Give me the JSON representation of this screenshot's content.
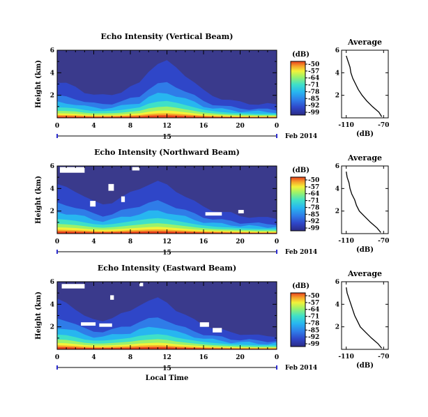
{
  "chart_data": [
    {
      "type": "heatmap",
      "title": "Echo Intensity (Vertical Beam)",
      "ylabel": "Height (km)",
      "xlabel": "",
      "y_ticks": [
        "6",
        "4",
        "2"
      ],
      "ylim": [
        0,
        6
      ],
      "x_ticks": [
        "0",
        "4",
        "8",
        "12",
        "16",
        "20",
        "0"
      ],
      "xlim": [
        0,
        24
      ],
      "date_day": "15",
      "date_label": "Feb 2014",
      "colorbar": {
        "label": "(dB)",
        "ticks": [
          "-50",
          "-57",
          "-64",
          "-71",
          "-78",
          "-85",
          "-92",
          "-99"
        ],
        "range": [
          -99,
          -50
        ]
      },
      "echo_top_km": {
        "time_h": [
          0,
          1,
          2,
          3,
          4,
          5,
          6,
          7,
          8,
          9,
          10,
          11,
          12,
          13,
          14,
          15,
          16,
          17,
          18,
          19,
          20,
          21,
          22,
          23,
          24
        ],
        "height": [
          3.1,
          3.0,
          2.8,
          2.3,
          2.0,
          2.0,
          2.1,
          2.3,
          2.7,
          3.1,
          4.2,
          4.8,
          5.0,
          4.5,
          3.8,
          3.1,
          2.4,
          2.0,
          1.7,
          1.5,
          1.4,
          1.3,
          1.2,
          1.2,
          1.2
        ]
      },
      "gaps": [],
      "average": {
        "title": "Average",
        "xlabel": "(dB)",
        "x_ticks": [
          "-110",
          "-70"
        ],
        "xlim": [
          -115,
          -65
        ],
        "y_ticks": [
          "6",
          "4",
          "2"
        ],
        "ylim": [
          0,
          6
        ],
        "height_km": [
          0.1,
          0.5,
          1.0,
          1.5,
          2.0,
          2.5,
          3.0,
          3.5,
          4.0,
          4.5,
          5.0,
          5.5
        ],
        "value_db": [
          -72,
          -75,
          -82,
          -88,
          -93,
          -97,
          -100,
          -103,
          -105,
          -106,
          -108,
          -110
        ]
      }
    },
    {
      "type": "heatmap",
      "title": "Echo Intensity (Northward Beam)",
      "ylabel": "Height (km)",
      "xlabel": "",
      "y_ticks": [
        "6",
        "4",
        "2"
      ],
      "ylim": [
        0,
        6
      ],
      "x_ticks": [
        "0",
        "4",
        "8",
        "12",
        "16",
        "20",
        "0"
      ],
      "xlim": [
        0,
        24
      ],
      "date_day": "15",
      "date_label": "Feb 2014",
      "colorbar": {
        "label": "(dB)",
        "ticks": [
          "-50",
          "-57",
          "-64",
          "-71",
          "-78",
          "-85",
          "-92",
          "-99"
        ],
        "range": [
          -99,
          -50
        ]
      },
      "echo_top_km": {
        "time_h": [
          0,
          1,
          2,
          3,
          4,
          5,
          6,
          7,
          8,
          9,
          10,
          11,
          12,
          13,
          14,
          15,
          16,
          17,
          18,
          19,
          20,
          21,
          22,
          23,
          24
        ],
        "height": [
          4.3,
          4.1,
          3.8,
          3.3,
          2.8,
          2.6,
          2.8,
          3.2,
          3.6,
          4.0,
          4.4,
          4.6,
          4.3,
          3.8,
          3.3,
          2.8,
          2.4,
          2.1,
          1.9,
          1.8,
          1.6,
          1.5,
          1.4,
          1.4,
          1.4
        ]
      },
      "gaps": [
        {
          "t0": 0.3,
          "t1": 3.0,
          "h0": 5.4,
          "h1": 5.9
        },
        {
          "t0": 3.6,
          "t1": 4.2,
          "h0": 2.4,
          "h1": 2.9
        },
        {
          "t0": 5.6,
          "t1": 6.2,
          "h0": 3.8,
          "h1": 4.4
        },
        {
          "t0": 7.0,
          "t1": 7.4,
          "h0": 2.8,
          "h1": 3.3
        },
        {
          "t0": 8.2,
          "t1": 9.0,
          "h0": 5.6,
          "h1": 5.9
        },
        {
          "t0": 16.2,
          "t1": 18.0,
          "h0": 1.6,
          "h1": 1.9
        },
        {
          "t0": 19.8,
          "t1": 20.4,
          "h0": 1.8,
          "h1": 2.1
        }
      ],
      "average": {
        "title": "Average",
        "xlabel": "(dB)",
        "x_ticks": [
          "-110",
          "-70"
        ],
        "xlim": [
          -115,
          -65
        ],
        "y_ticks": [
          "6",
          "4",
          "2"
        ],
        "ylim": [
          0,
          6
        ],
        "height_km": [
          0.1,
          0.5,
          1.0,
          1.5,
          2.0,
          2.5,
          3.0,
          3.5,
          4.0,
          4.5,
          5.0,
          5.5
        ],
        "value_db": [
          -73,
          -77,
          -84,
          -90,
          -96,
          -99,
          -101,
          -104,
          -106,
          -107,
          -109,
          -110
        ]
      }
    },
    {
      "type": "heatmap",
      "title": "Echo Intensity (Eastward Beam)",
      "ylabel": "Height (km)",
      "xlabel": "Local Time",
      "y_ticks": [
        "6",
        "4",
        "2"
      ],
      "ylim": [
        0,
        6
      ],
      "x_ticks": [
        "0",
        "4",
        "8",
        "12",
        "16",
        "20",
        "0"
      ],
      "xlim": [
        0,
        24
      ],
      "date_day": "15",
      "date_label": "Feb 2014",
      "colorbar": {
        "label": "(dB)",
        "ticks": [
          "-50",
          "-57",
          "-64",
          "-71",
          "-78",
          "-85",
          "-92",
          "-99"
        ],
        "range": [
          -99,
          -50
        ]
      },
      "echo_top_km": {
        "time_h": [
          0,
          1,
          2,
          3,
          4,
          5,
          6,
          7,
          8,
          9,
          10,
          11,
          12,
          13,
          14,
          15,
          16,
          17,
          18,
          19,
          20,
          21,
          22,
          23,
          24
        ],
        "height": [
          4.4,
          4.2,
          3.6,
          2.9,
          2.6,
          2.6,
          2.8,
          3.1,
          3.4,
          4.0,
          4.3,
          4.5,
          4.2,
          3.5,
          3.0,
          2.6,
          2.2,
          1.9,
          1.7,
          1.5,
          1.4,
          1.3,
          1.2,
          1.2,
          1.2
        ]
      },
      "gaps": [
        {
          "t0": 0.5,
          "t1": 3.0,
          "h0": 5.4,
          "h1": 5.8
        },
        {
          "t0": 2.6,
          "t1": 4.2,
          "h0": 2.1,
          "h1": 2.4
        },
        {
          "t0": 4.6,
          "t1": 6.0,
          "h0": 2.0,
          "h1": 2.3
        },
        {
          "t0": 5.8,
          "t1": 6.2,
          "h0": 4.4,
          "h1": 4.8
        },
        {
          "t0": 9.0,
          "t1": 9.4,
          "h0": 5.6,
          "h1": 5.9
        },
        {
          "t0": 15.6,
          "t1": 16.6,
          "h0": 2.0,
          "h1": 2.4
        },
        {
          "t0": 17.0,
          "t1": 18.0,
          "h0": 1.5,
          "h1": 1.9
        }
      ],
      "average": {
        "title": "Average",
        "xlabel": "(dB)",
        "x_ticks": [
          "-110",
          "-70"
        ],
        "xlim": [
          -115,
          -65
        ],
        "y_ticks": [
          "6",
          "4",
          "2"
        ],
        "ylim": [
          0,
          6
        ],
        "height_km": [
          0.1,
          0.5,
          1.0,
          1.5,
          2.0,
          2.5,
          3.0,
          3.5,
          4.0,
          4.5,
          5.0,
          5.5
        ],
        "value_db": [
          -72,
          -76,
          -83,
          -89,
          -95,
          -98,
          -101,
          -103,
          -105,
          -107,
          -109,
          -110
        ]
      }
    }
  ],
  "colors": {
    "background": "#3a3a8c",
    "colormap": [
      "#2b2b86",
      "#2f46c8",
      "#2f7ce8",
      "#27b6f0",
      "#3fe0c8",
      "#9cf26a",
      "#f2f23a",
      "#f6a52a",
      "#e8401e"
    ],
    "gap": "#ffffff"
  }
}
